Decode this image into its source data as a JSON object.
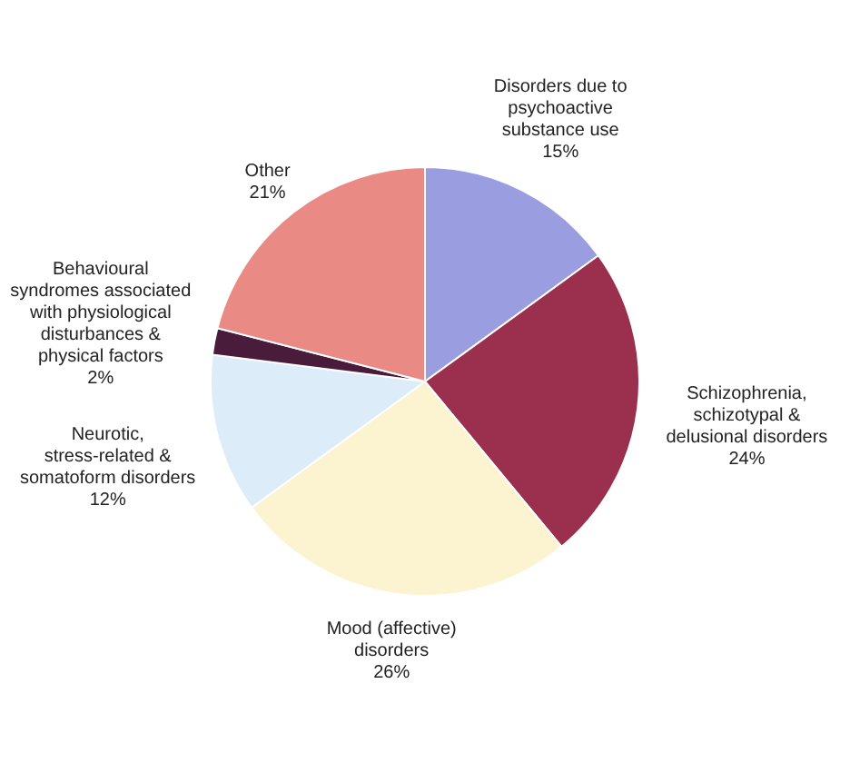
{
  "chart_data": {
    "type": "pie",
    "categories": [
      "Disorders due to psychoactive substance use",
      "Schizophrenia, schizotypal & delusional disorders",
      "Mood (affective) disorders",
      "Neurotic, stress-related & somatoform disorders",
      "Behavioural syndromes associated with physiological disturbances & physical factors",
      "Other"
    ],
    "values": [
      15,
      24,
      26,
      12,
      2,
      21
    ],
    "colors": [
      "#9a9ee0",
      "#9b2f4e",
      "#fcf3d0",
      "#dcecf8",
      "#4a1c3c",
      "#e98a85"
    ],
    "value_labels": [
      "15%",
      "24%",
      "26%",
      "12%",
      "2%",
      "21%"
    ]
  }
}
